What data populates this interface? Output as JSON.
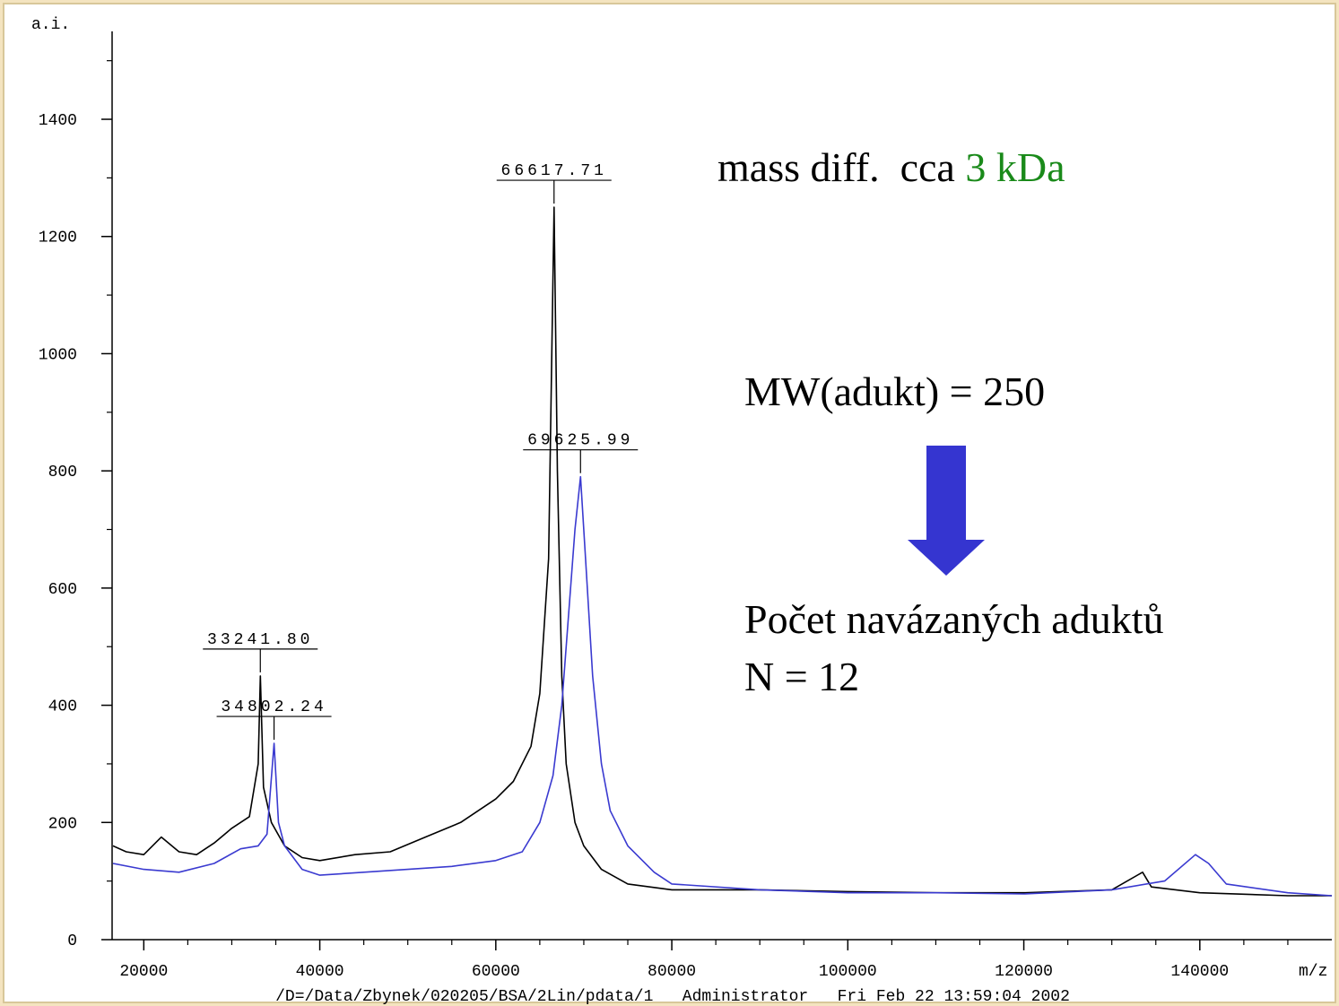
{
  "chart_data": {
    "type": "line",
    "y_label": "a.i.",
    "x_label": "m/z",
    "footer": "/D=/Data/Zbynek/020205/BSA/2Lin/pdata/1   Administrator   Fri Feb 22 13:59:04 2002",
    "xlim": [
      16400,
      155000
    ],
    "ylim": [
      0,
      1550
    ],
    "xticks": [
      20000,
      40000,
      60000,
      80000,
      100000,
      120000,
      140000
    ],
    "xminorticks": [
      25000,
      30000,
      35000,
      45000,
      50000,
      55000,
      65000,
      70000,
      75000,
      85000,
      90000,
      95000,
      105000,
      110000,
      115000,
      125000,
      130000,
      135000,
      145000,
      150000
    ],
    "yticks": [
      0,
      200,
      400,
      600,
      800,
      1000,
      1200,
      1400
    ],
    "yminorticks": [
      100,
      300,
      500,
      700,
      900,
      1100,
      1300,
      1500
    ],
    "series": [
      {
        "color": "#000000",
        "x": [
          16500,
          18000,
          20000,
          22000,
          24000,
          26000,
          28000,
          30000,
          32000,
          33000,
          33241.8,
          33600,
          34500,
          36000,
          38000,
          40000,
          44000,
          48000,
          52000,
          56000,
          60000,
          62000,
          64000,
          65000,
          66000,
          66617.71,
          67000,
          67500,
          68000,
          69000,
          70000,
          72000,
          75000,
          80000,
          90000,
          100000,
          110000,
          120000,
          130000,
          133500,
          134500,
          140000,
          150000,
          155000
        ],
        "values": [
          160,
          150,
          145,
          175,
          150,
          145,
          165,
          190,
          210,
          300,
          450,
          260,
          200,
          160,
          140,
          135,
          145,
          150,
          175,
          200,
          240,
          270,
          330,
          420,
          650,
          1250,
          800,
          450,
          300,
          200,
          160,
          120,
          95,
          85,
          85,
          82,
          80,
          80,
          85,
          115,
          90,
          80,
          75,
          75
        ],
        "peaks": [
          {
            "value": 66617.71,
            "label": "66617.71"
          },
          {
            "value": 33241.8,
            "label": "33241.80"
          }
        ]
      },
      {
        "color": "#3a3ad0",
        "x": [
          16500,
          20000,
          24000,
          28000,
          31000,
          33000,
          34000,
          34802.24,
          35300,
          36000,
          38000,
          40000,
          45000,
          50000,
          55000,
          60000,
          63000,
          65000,
          66500,
          67500,
          68500,
          69000,
          69625.99,
          70200,
          71000,
          72000,
          73000,
          75000,
          78000,
          80000,
          90000,
          100000,
          110000,
          120000,
          130000,
          136000,
          139500,
          141000,
          143000,
          150000,
          155000
        ],
        "values": [
          130,
          120,
          115,
          130,
          155,
          160,
          180,
          335,
          200,
          160,
          120,
          110,
          115,
          120,
          125,
          135,
          150,
          200,
          280,
          400,
          600,
          700,
          790,
          650,
          450,
          300,
          220,
          160,
          115,
          95,
          85,
          80,
          80,
          78,
          85,
          100,
          145,
          130,
          95,
          80,
          75
        ],
        "peaks": [
          {
            "value": 69625.99,
            "label": "69625.99"
          },
          {
            "value": 34802.24,
            "label": "34802.24"
          }
        ]
      }
    ],
    "annotations": [
      {
        "text": "mass diff.  cca ",
        "color": "#000000"
      },
      {
        "text": "3 kDa",
        "color": "#1a8a1a"
      },
      {
        "text": "MW(adukt) = 250",
        "color": "#000000"
      },
      {
        "text": "Počet navázaných aduktů",
        "color": "#000000"
      },
      {
        "text": "N = 12",
        "color": "#000000"
      }
    ]
  }
}
